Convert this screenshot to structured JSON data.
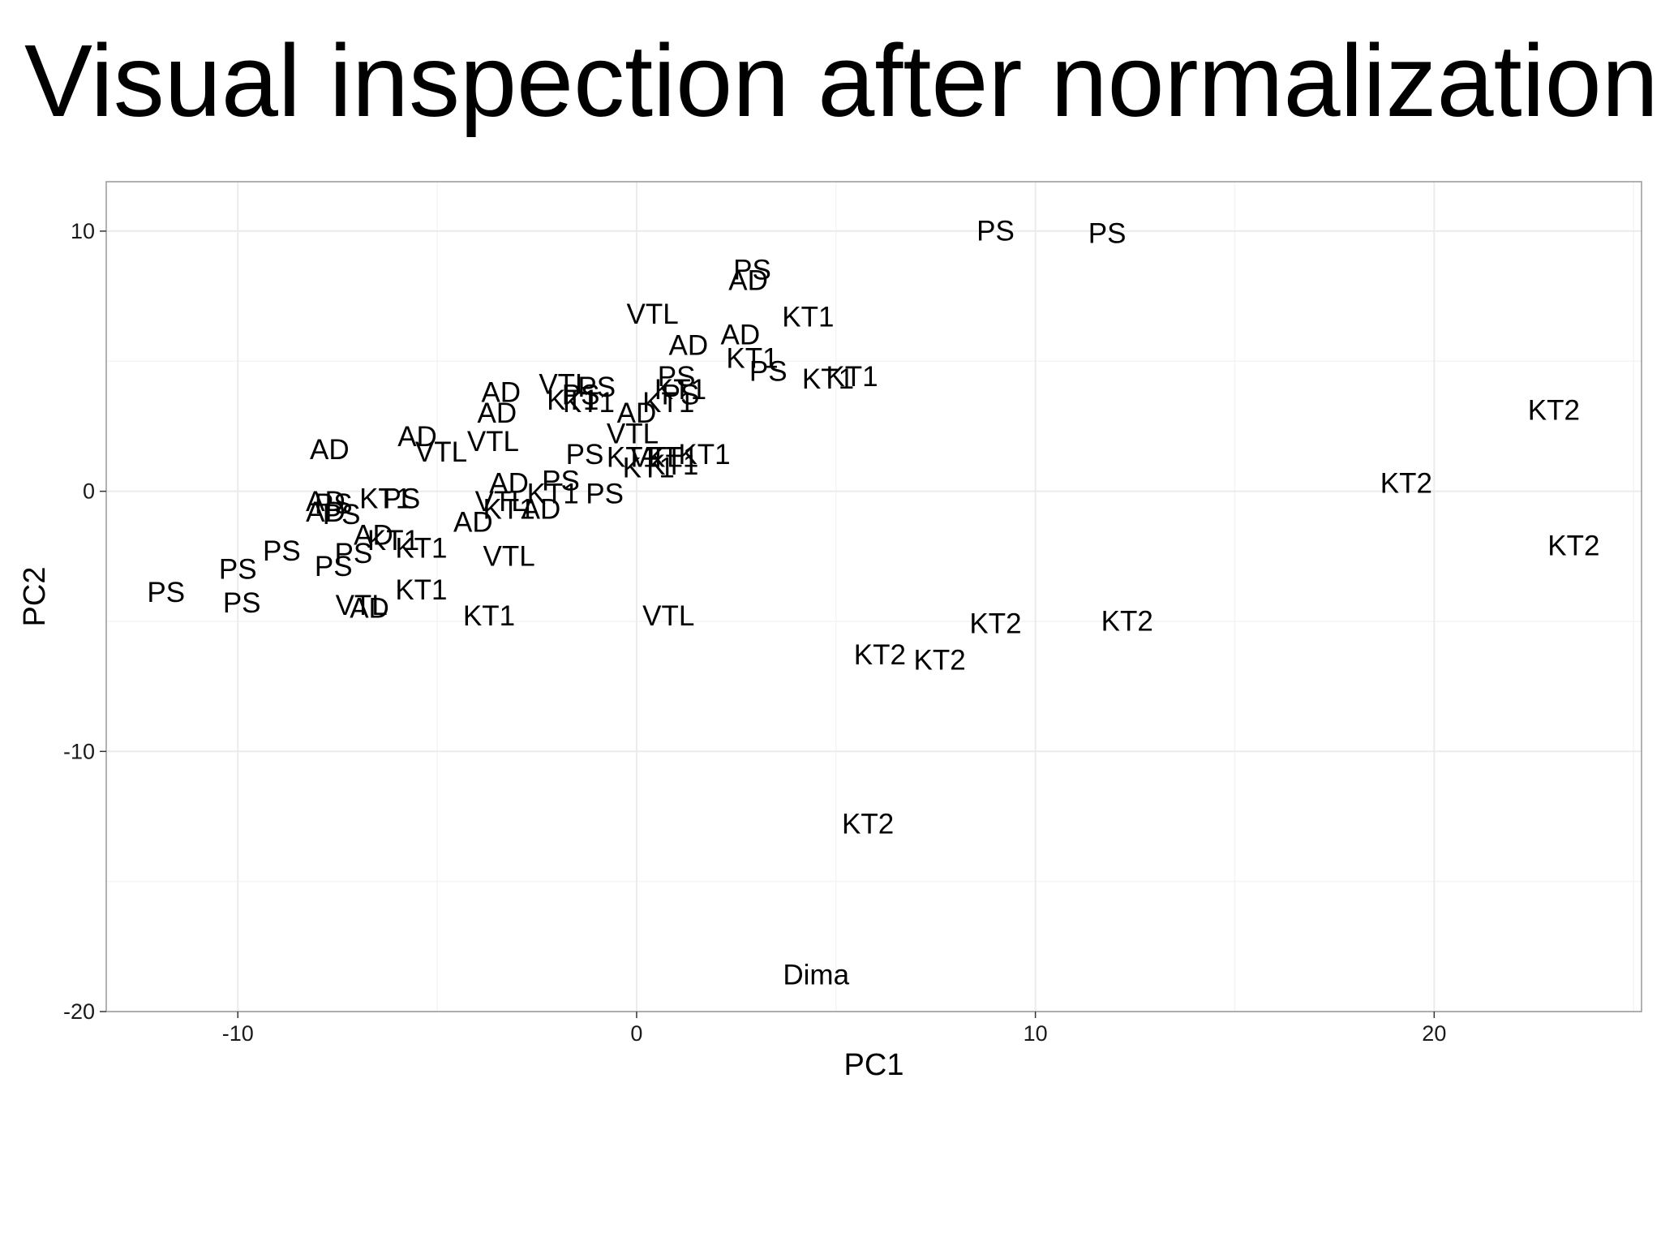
{
  "slide": {
    "title": "Visual inspection after normalization"
  },
  "chart_data": {
    "type": "scatter",
    "title": "Visual inspection after normalization",
    "xlabel": "PC1",
    "ylabel": "PC2",
    "xlim": [
      -13.3,
      25.2
    ],
    "ylim": [
      -20.0,
      11.9
    ],
    "xticks": [
      -10,
      0,
      10,
      20
    ],
    "yticks": [
      10,
      0,
      -10,
      -20
    ],
    "grid": true,
    "colors": {
      "background": "#ffffff",
      "panel_border": "#999999",
      "grid_major": "#ebebeb",
      "grid_minor": "#f4f4f4",
      "text": "#000000"
    },
    "points": [
      {
        "label": "PS",
        "x": 9.0,
        "y": 10.0
      },
      {
        "label": "PS",
        "x": 11.8,
        "y": 9.9
      },
      {
        "label": "PS",
        "x": 2.9,
        "y": 8.5
      },
      {
        "label": "AD",
        "x": 2.8,
        "y": 8.1
      },
      {
        "label": "VTL",
        "x": 0.4,
        "y": 6.8
      },
      {
        "label": "KT1",
        "x": 4.3,
        "y": 6.7
      },
      {
        "label": "AD",
        "x": 2.6,
        "y": 6.0
      },
      {
        "label": "AD",
        "x": 1.3,
        "y": 5.6
      },
      {
        "label": "KT1",
        "x": 2.9,
        "y": 5.1
      },
      {
        "label": "PS",
        "x": 3.3,
        "y": 4.6
      },
      {
        "label": "KT1",
        "x": 4.8,
        "y": 4.3
      },
      {
        "label": "KT1",
        "x": 5.4,
        "y": 4.4
      },
      {
        "label": "PS",
        "x": 1.0,
        "y": 4.4
      },
      {
        "label": "KT1",
        "x": 1.1,
        "y": 3.9
      },
      {
        "label": "PS",
        "x": 1.1,
        "y": 3.7
      },
      {
        "label": "KT1",
        "x": 0.8,
        "y": 3.4
      },
      {
        "label": "VTL",
        "x": -1.8,
        "y": 4.1
      },
      {
        "label": "PS",
        "x": -1.0,
        "y": 4.0
      },
      {
        "label": "PS",
        "x": -1.4,
        "y": 3.7
      },
      {
        "label": "KT1",
        "x": -1.2,
        "y": 3.4
      },
      {
        "label": "KT1",
        "x": -1.6,
        "y": 3.5
      },
      {
        "label": "AD",
        "x": 0.0,
        "y": 3.0
      },
      {
        "label": "AD",
        "x": -3.4,
        "y": 3.8
      },
      {
        "label": "AD",
        "x": -3.5,
        "y": 3.0
      },
      {
        "label": "VTL",
        "x": -0.1,
        "y": 2.2
      },
      {
        "label": "AD",
        "x": -5.5,
        "y": 2.1
      },
      {
        "label": "VTL",
        "x": -3.6,
        "y": 1.9
      },
      {
        "label": "VTL",
        "x": -4.9,
        "y": 1.5
      },
      {
        "label": "AD",
        "x": -7.7,
        "y": 1.6
      },
      {
        "label": "PS",
        "x": -1.3,
        "y": 1.4
      },
      {
        "label": "KT1",
        "x": -0.1,
        "y": 1.3
      },
      {
        "label": "VTL",
        "x": 0.5,
        "y": 1.3
      },
      {
        "label": "KT1",
        "x": 0.9,
        "y": 1.3
      },
      {
        "label": "KT1",
        "x": 1.7,
        "y": 1.4
      },
      {
        "label": "KT1",
        "x": 0.3,
        "y": 0.9
      },
      {
        "label": "KT1",
        "x": 0.9,
        "y": 1.0
      },
      {
        "label": "AD",
        "x": -3.2,
        "y": 0.3
      },
      {
        "label": "PS",
        "x": -1.9,
        "y": 0.4
      },
      {
        "label": "KT1",
        "x": -2.1,
        "y": -0.1
      },
      {
        "label": "PS",
        "x": -0.8,
        "y": -0.1
      },
      {
        "label": "VTL",
        "x": -3.4,
        "y": -0.4
      },
      {
        "label": "KT1",
        "x": -3.2,
        "y": -0.7
      },
      {
        "label": "AD",
        "x": -2.4,
        "y": -0.7
      },
      {
        "label": "AD",
        "x": -4.1,
        "y": -1.2
      },
      {
        "label": "KT1",
        "x": -6.3,
        "y": -0.3
      },
      {
        "label": "PS",
        "x": -5.9,
        "y": -0.3
      },
      {
        "label": "AD",
        "x": -7.8,
        "y": -0.4
      },
      {
        "label": "PS",
        "x": -7.6,
        "y": -0.5
      },
      {
        "label": "AD",
        "x": -7.8,
        "y": -0.8
      },
      {
        "label": "PS",
        "x": -7.4,
        "y": -0.9
      },
      {
        "label": "AD",
        "x": -6.6,
        "y": -1.7
      },
      {
        "label": "KT1",
        "x": -6.1,
        "y": -1.9
      },
      {
        "label": "KT1",
        "x": -5.4,
        "y": -2.2
      },
      {
        "label": "VTL",
        "x": -3.2,
        "y": -2.5
      },
      {
        "label": "PS",
        "x": -8.9,
        "y": -2.3
      },
      {
        "label": "PS",
        "x": -7.1,
        "y": -2.4
      },
      {
        "label": "PS",
        "x": -7.6,
        "y": -2.9
      },
      {
        "label": "PS",
        "x": -10.0,
        "y": -3.0
      },
      {
        "label": "PS",
        "x": -11.8,
        "y": -3.9
      },
      {
        "label": "PS",
        "x": -9.9,
        "y": -4.3
      },
      {
        "label": "KT1",
        "x": -5.4,
        "y": -3.8
      },
      {
        "label": "VTL",
        "x": -6.9,
        "y": -4.4
      },
      {
        "label": "AD",
        "x": -6.7,
        "y": -4.5
      },
      {
        "label": "KT1",
        "x": -3.7,
        "y": -4.8
      },
      {
        "label": "VTL",
        "x": 0.8,
        "y": -4.8
      },
      {
        "label": "KT2",
        "x": 9.0,
        "y": -5.1
      },
      {
        "label": "KT2",
        "x": 12.3,
        "y": -5.0
      },
      {
        "label": "KT2",
        "x": 6.1,
        "y": -6.3
      },
      {
        "label": "KT2",
        "x": 7.6,
        "y": -6.5
      },
      {
        "label": "KT2",
        "x": 23.0,
        "y": 3.1
      },
      {
        "label": "KT2",
        "x": 19.3,
        "y": 0.3
      },
      {
        "label": "KT2",
        "x": 23.5,
        "y": -2.1
      },
      {
        "label": "KT2",
        "x": 5.8,
        "y": -12.8
      },
      {
        "label": "Dima",
        "x": 4.5,
        "y": -18.6
      }
    ]
  }
}
